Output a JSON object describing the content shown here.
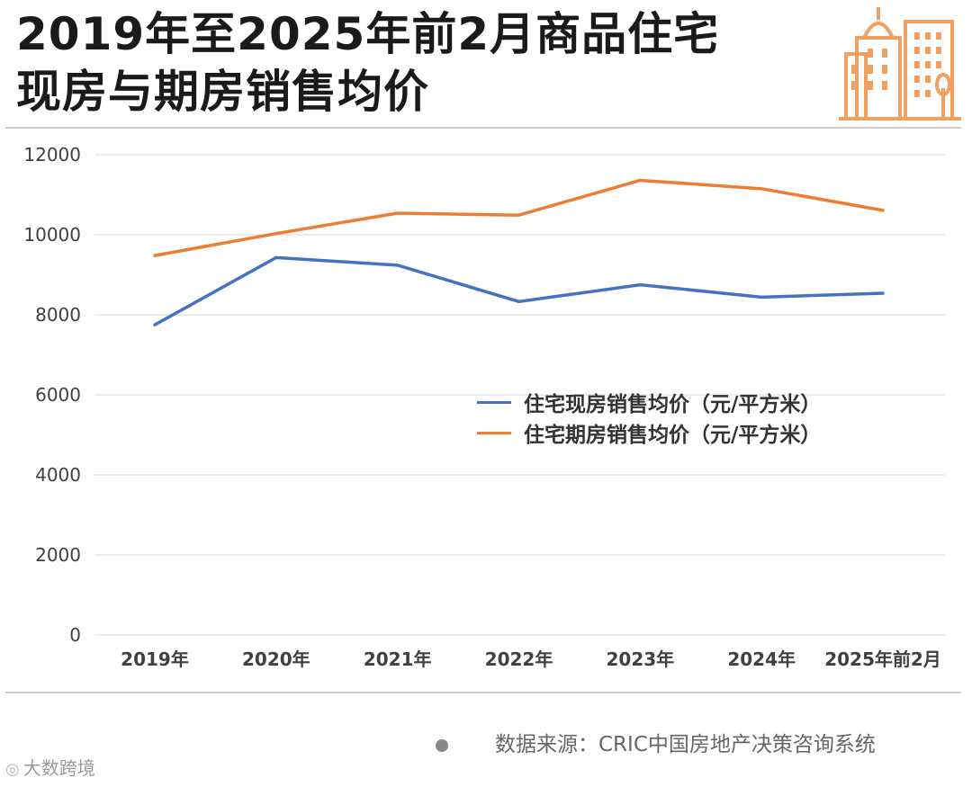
{
  "title_lines": [
    "2019年至2025年前2月商品住宅",
    "现房与期房销售均价"
  ],
  "source_text": "数据来源：CRIC中国房地产决策咨询系统",
  "watermark_logo_text": "大数跨境",
  "colors": {
    "series1": "#4472C4",
    "series2": "#ED7D31",
    "grid": "#d9d9d9",
    "icon": "#F0A060"
  },
  "chart_data": {
    "type": "line",
    "title": "2019年至2025年前2月商品住宅现房与期房销售均价",
    "categories": [
      "2019年",
      "2020年",
      "2021年",
      "2022年",
      "2023年",
      "2024年",
      "2025年前2月"
    ],
    "ylim": [
      0,
      12000
    ],
    "yticks": [
      0,
      2000,
      4000,
      6000,
      8000,
      10000,
      12000
    ],
    "grid": true,
    "legend_position": "center-right",
    "xlabel": "",
    "ylabel": "",
    "series": [
      {
        "name": "住宅现房销售均价（元/平方米）",
        "color": "#4472C4",
        "values": [
          7750,
          9430,
          9240,
          8330,
          8750,
          8440,
          8540
        ]
      },
      {
        "name": "住宅期房销售均价（元/平方米）",
        "color": "#ED7D31",
        "values": [
          9480,
          10030,
          10540,
          10490,
          11360,
          11150,
          10610
        ]
      }
    ]
  }
}
